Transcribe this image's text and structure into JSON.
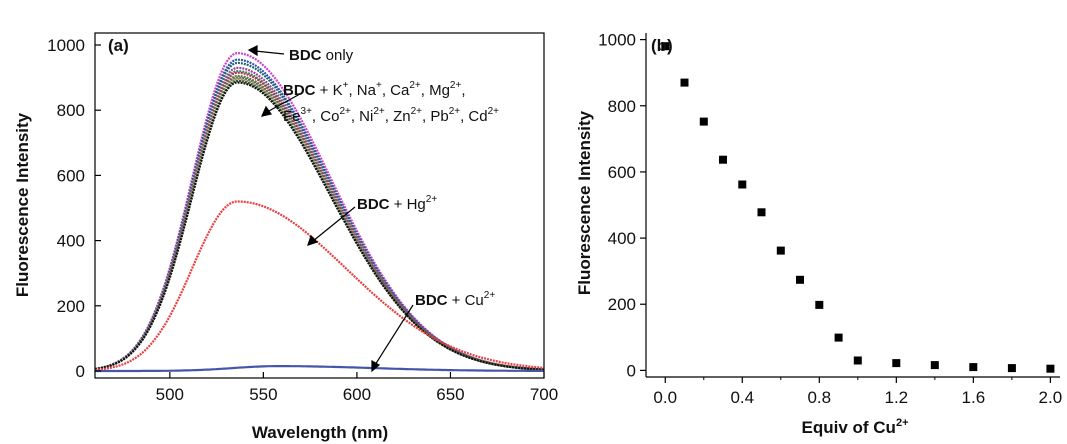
{
  "chart_data": [
    {
      "type": "line",
      "panel_label": "(a)",
      "xlabel": "Wavelength (nm)",
      "ylabel": "Fluorescence Intensity",
      "xlim": [
        460,
        700
      ],
      "ylim": [
        0,
        1000
      ],
      "xticks": [
        500,
        550,
        600,
        650,
        700
      ],
      "yticks": [
        0,
        200,
        400,
        600,
        800,
        1000
      ],
      "peak_x": 536,
      "series": [
        {
          "label": "BDC only",
          "peak": 975,
          "color": "#cc44cc"
        },
        {
          "label": "BDC + K+",
          "peak": 955,
          "color": "#3355aa"
        },
        {
          "label": "BDC + Na+",
          "peak": 945,
          "color": "#226666"
        },
        {
          "label": "BDC + Ca2+",
          "peak": 930,
          "color": "#9944aa"
        },
        {
          "label": "BDC + Mg2+",
          "peak": 920,
          "color": "#448844"
        },
        {
          "label": "BDC + Fe3+",
          "peak": 915,
          "color": "#aa3366"
        },
        {
          "label": "BDC + Co2+",
          "peak": 905,
          "color": "#667722"
        },
        {
          "label": "BDC + Ni2+",
          "peak": 900,
          "color": "#556688"
        },
        {
          "label": "BDC + Zn2+",
          "peak": 895,
          "color": "#999933"
        },
        {
          "label": "BDC + Pb2+",
          "peak": 890,
          "color": "#335544"
        },
        {
          "label": "BDC + Cd2+",
          "peak": 885,
          "color": "#111111"
        },
        {
          "label": "BDC + Hg2+",
          "peak": 520,
          "color": "#e84040"
        },
        {
          "label": "BDC + Cu2+",
          "peak": 15,
          "color": "#4455aa"
        }
      ],
      "annotations": {
        "only": {
          "bold": "BDC",
          "rest": " only"
        },
        "mixed_line1": {
          "bold": "BDC",
          "rest": " + K",
          "k_sup": "+",
          "na": ", Na",
          "na_sup": "+",
          "ca": ", Ca",
          "ca_sup": "2+",
          "mg": ", Mg",
          "mg_sup": "2+",
          "end": ","
        },
        "mixed_line2": {
          "fe": "Fe",
          "fe_sup": "3+",
          "co": ", Co",
          "co_sup": "2+",
          "ni": ", Ni",
          "ni_sup": "2+",
          "zn": ", Zn",
          "zn_sup": "2+",
          "pb": ", Pb",
          "pb_sup": "2+",
          "cd": ", Cd",
          "cd_sup": "2+"
        },
        "hg": {
          "bold": "BDC",
          "rest": " + Hg",
          "sup": "2+"
        },
        "cu": {
          "bold": "BDC",
          "rest": " + Cu",
          "sup": "2+"
        }
      }
    },
    {
      "type": "scatter",
      "panel_label": "(b)",
      "xlabel": "Equiv of Cu",
      "xlabel_sup": "2+",
      "ylabel": "Fluorescence Intensity",
      "xlim": [
        -0.1,
        2.05
      ],
      "ylim": [
        -20,
        1020
      ],
      "xticks": [
        "0.0",
        "0.4",
        "0.8",
        "1.2",
        "1.6",
        "2.0"
      ],
      "yticks": [
        0,
        200,
        400,
        600,
        800,
        1000
      ],
      "marker_color": "#000000",
      "x": [
        0.0,
        0.1,
        0.2,
        0.3,
        0.4,
        0.5,
        0.6,
        0.7,
        0.8,
        0.9,
        1.0,
        1.2,
        1.4,
        1.6,
        1.8,
        2.0
      ],
      "y": [
        980,
        870,
        752,
        637,
        562,
        478,
        362,
        274,
        198,
        99,
        30,
        22,
        16,
        10,
        7,
        5
      ]
    }
  ]
}
